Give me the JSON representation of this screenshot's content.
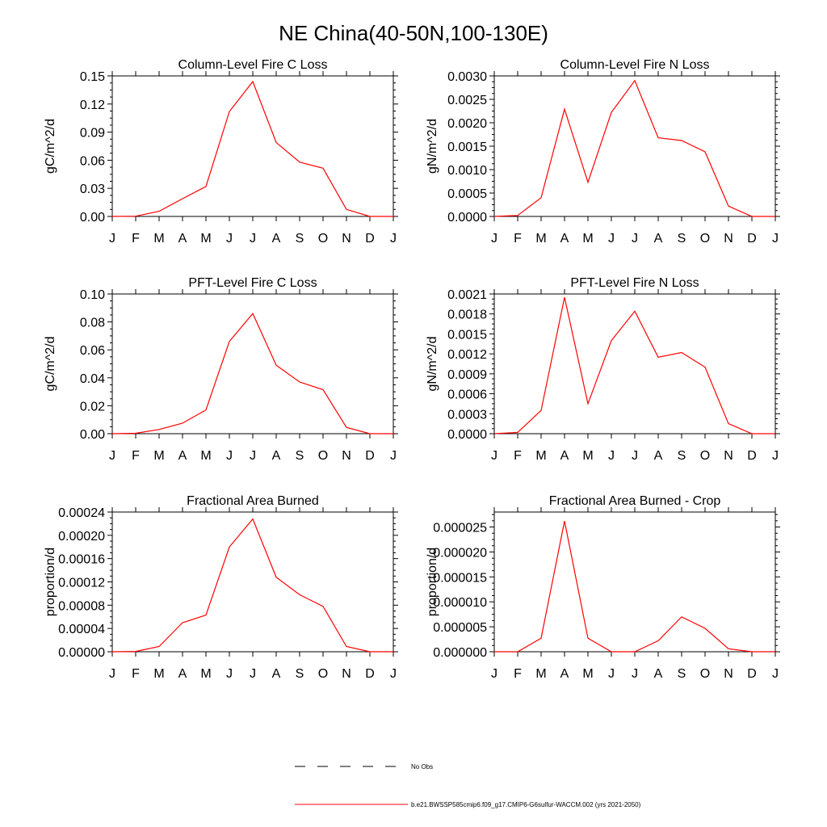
{
  "figure": {
    "title": "NE China(40-50N,100-130E)",
    "line_color": "#ff0000",
    "legend": [
      {
        "label": "No Obs",
        "style": "dashed",
        "color": "#000000"
      },
      {
        "label": "b.e21.BWSSP585cmip6.f09_g17.CMIP6-G6sulfur-WACCM.002 (yrs 2021-2050)",
        "style": "solid",
        "color": "#ff0000"
      }
    ]
  },
  "chart_data": [
    {
      "type": "line",
      "title": "Column-Level Fire C Loss",
      "ylabel": "gC/m^2/d",
      "xlabel": "",
      "categories": [
        "J",
        "F",
        "M",
        "A",
        "M",
        "J",
        "J",
        "A",
        "S",
        "O",
        "N",
        "D",
        "J"
      ],
      "ylim": [
        0,
        0.15
      ],
      "yticks": [
        "0.00",
        "0.03",
        "0.06",
        "0.09",
        "0.12",
        "0.15"
      ],
      "series": [
        {
          "values": [
            0.0,
            0.0003,
            0.0055,
            0.019,
            0.032,
            0.112,
            0.144,
            0.079,
            0.058,
            0.0515,
            0.0075,
            0.0,
            0.0
          ]
        }
      ]
    },
    {
      "type": "line",
      "title": "Column-Level Fire N Loss",
      "ylabel": "gN/m^2/d",
      "xlabel": "",
      "categories": [
        "J",
        "F",
        "M",
        "A",
        "M",
        "J",
        "J",
        "A",
        "S",
        "O",
        "N",
        "D",
        "J"
      ],
      "ylim": [
        0,
        0.003
      ],
      "yticks": [
        "0.0000",
        "0.0005",
        "0.0010",
        "0.0015",
        "0.0020",
        "0.0025",
        "0.0030"
      ],
      "series": [
        {
          "values": [
            0.0,
            2e-05,
            0.0004,
            0.00229,
            0.00073,
            0.00222,
            0.0029,
            0.00168,
            0.00162,
            0.00138,
            0.00022,
            0.0,
            0.0
          ]
        }
      ]
    },
    {
      "type": "line",
      "title": "PFT-Level Fire C Loss",
      "ylabel": "gC/m^2/d",
      "xlabel": "",
      "categories": [
        "J",
        "F",
        "M",
        "A",
        "M",
        "J",
        "J",
        "A",
        "S",
        "O",
        "N",
        "D",
        "J"
      ],
      "ylim": [
        0,
        0.1
      ],
      "yticks": [
        "0.00",
        "0.02",
        "0.04",
        "0.06",
        "0.08",
        "0.10"
      ],
      "series": [
        {
          "values": [
            0.0,
            0.0003,
            0.003,
            0.0075,
            0.017,
            0.066,
            0.086,
            0.049,
            0.037,
            0.0315,
            0.0045,
            0.0,
            0.0
          ]
        }
      ]
    },
    {
      "type": "line",
      "title": "PFT-Level Fire N Loss",
      "ylabel": "gN/m^2/d",
      "xlabel": "",
      "categories": [
        "J",
        "F",
        "M",
        "A",
        "M",
        "J",
        "J",
        "A",
        "S",
        "O",
        "N",
        "D",
        "J"
      ],
      "ylim": [
        0,
        0.0021
      ],
      "yticks": [
        "0.0000",
        "0.0003",
        "0.0006",
        "0.0009",
        "0.0012",
        "0.0015",
        "0.0018",
        "0.0021"
      ],
      "series": [
        {
          "values": [
            0.0,
            2e-05,
            0.00035,
            0.00205,
            0.00045,
            0.0014,
            0.00184,
            0.00115,
            0.00122,
            0.001,
            0.00015,
            0.0,
            0.0
          ]
        }
      ]
    },
    {
      "type": "line",
      "title": "Fractional Area Burned",
      "ylabel": "proportion/d",
      "xlabel": "",
      "categories": [
        "J",
        "F",
        "M",
        "A",
        "M",
        "J",
        "J",
        "A",
        "S",
        "O",
        "N",
        "D",
        "J"
      ],
      "ylim": [
        0,
        0.00024
      ],
      "yticks": [
        "0.00000",
        "0.00004",
        "0.00008",
        "0.00012",
        "0.00016",
        "0.00020",
        "0.00024"
      ],
      "series": [
        {
          "values": [
            0.0,
            5e-07,
            9e-06,
            5e-05,
            6.3e-05,
            0.00018,
            0.000228,
            0.000128,
            9.8e-05,
            7.8e-05,
            9e-06,
            0.0,
            0.0
          ]
        }
      ]
    },
    {
      "type": "line",
      "title": "Fractional Area Burned - Crop",
      "ylabel": "proportion/d",
      "xlabel": "",
      "categories": [
        "J",
        "F",
        "M",
        "A",
        "M",
        "J",
        "J",
        "A",
        "S",
        "O",
        "N",
        "D",
        "J"
      ],
      "ylim": [
        0,
        2.8e-05
      ],
      "yticks": [
        "0.000000",
        "0.000005",
        "0.000010",
        "0.000015",
        "0.000020",
        "0.000025"
      ],
      "ytick_values": [
        0,
        5e-06,
        1e-05,
        1.5e-05,
        2e-05,
        2.5e-05
      ],
      "series": [
        {
          "values": [
            0.0,
            0.0,
            2.7e-06,
            2.62e-05,
            2.7e-06,
            0.0,
            0.0,
            2.2e-06,
            7e-06,
            4.7e-06,
            6e-07,
            0.0,
            0.0
          ]
        }
      ]
    }
  ]
}
